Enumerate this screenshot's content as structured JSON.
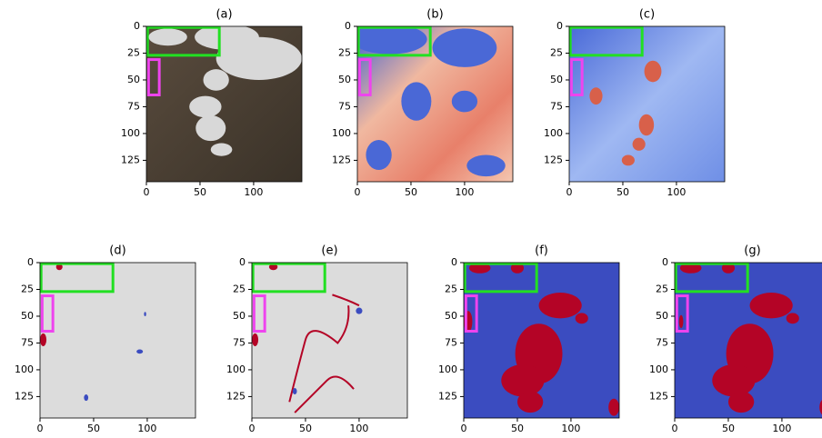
{
  "chart_data": [
    {
      "type": "image",
      "title": "(a)",
      "xlim": [
        0,
        145
      ],
      "ylim": [
        145,
        0
      ],
      "xticks": [
        0,
        50,
        100
      ],
      "yticks": [
        0,
        25,
        50,
        75,
        100,
        125
      ]
    },
    {
      "type": "image",
      "title": "(b)",
      "xlim": [
        0,
        145
      ],
      "ylim": [
        145,
        0
      ],
      "xticks": [
        0,
        50,
        100
      ],
      "yticks": [
        0,
        25,
        50,
        75,
        100,
        125
      ]
    },
    {
      "type": "image",
      "title": "(c)",
      "xlim": [
        0,
        145
      ],
      "ylim": [
        145,
        0
      ],
      "xticks": [
        0,
        50,
        100
      ],
      "yticks": [
        0,
        25,
        50,
        75,
        100,
        125
      ]
    },
    {
      "type": "image",
      "title": "(d)",
      "xlim": [
        0,
        145
      ],
      "ylim": [
        145,
        0
      ],
      "xticks": [
        0,
        50,
        100
      ],
      "yticks": [
        0,
        25,
        50,
        75,
        100,
        125
      ]
    },
    {
      "type": "image",
      "title": "(e)",
      "xlim": [
        0,
        145
      ],
      "ylim": [
        145,
        0
      ],
      "xticks": [
        0,
        50,
        100
      ],
      "yticks": [
        0,
        25,
        50,
        75,
        100,
        125
      ]
    },
    {
      "type": "image",
      "title": "(f)",
      "xlim": [
        0,
        145
      ],
      "ylim": [
        145,
        0
      ],
      "xticks": [
        0,
        50,
        100
      ],
      "yticks": [
        0,
        25,
        50,
        75,
        100,
        125
      ]
    },
    {
      "type": "image",
      "title": "(g)",
      "xlim": [
        0,
        145
      ],
      "ylim": [
        145,
        0
      ],
      "xticks": [
        0,
        50,
        100
      ],
      "yticks": [
        0,
        25,
        50,
        75,
        100,
        125
      ]
    }
  ]
}
